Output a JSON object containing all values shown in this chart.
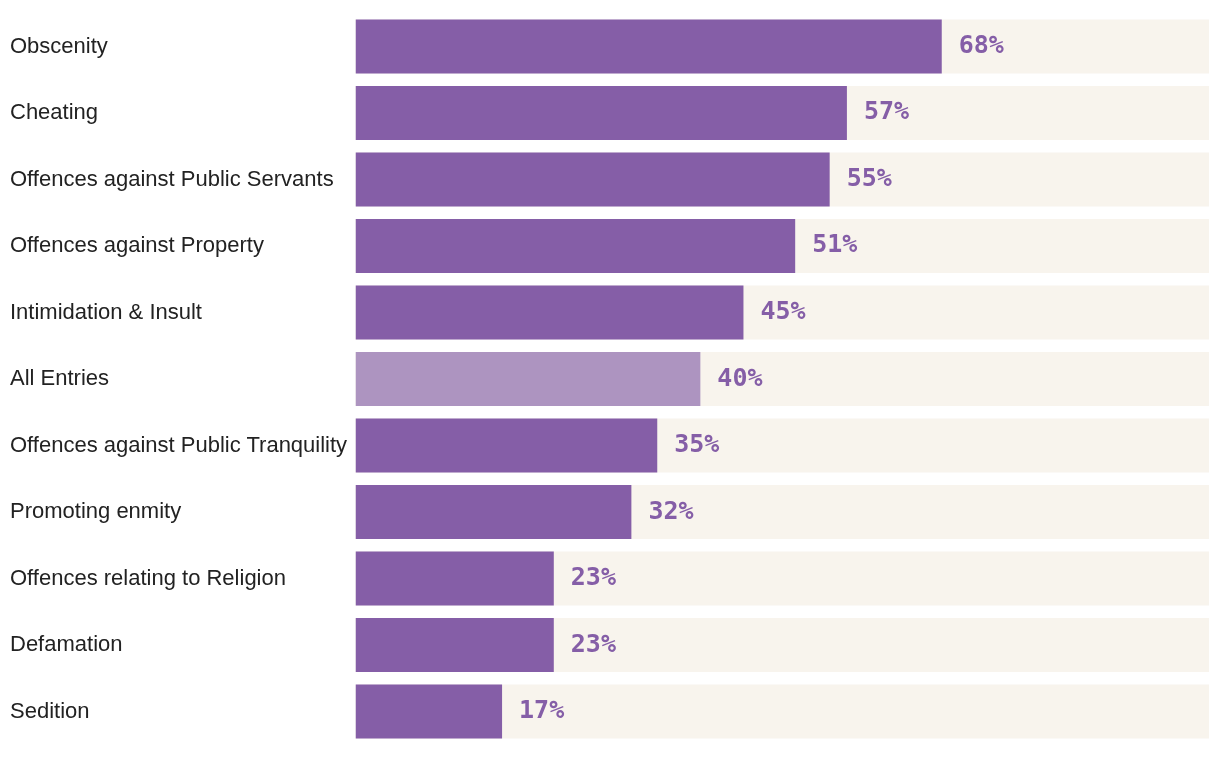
{
  "chart_data": {
    "type": "bar",
    "orientation": "horizontal",
    "categories": [
      "Obscenity",
      "Cheating",
      "Offences against Public Servants",
      "Offences against Property",
      "Intimidation & Insult",
      "All Entries",
      "Offences against Public Tranquility",
      "Promoting enmity",
      "Offences relating to Religion",
      "Defamation",
      "Sedition"
    ],
    "values": [
      68,
      57,
      55,
      51,
      45,
      40,
      35,
      32,
      23,
      23,
      17
    ],
    "colors": [
      "#855ea7",
      "#855ea7",
      "#855ea7",
      "#855ea7",
      "#855ea7",
      "#ad94c0",
      "#855ea7",
      "#855ea7",
      "#855ea7",
      "#855ea7",
      "#855ea7"
    ],
    "value_labels": [
      "68%",
      "57%",
      "55%",
      "51%",
      "45%",
      "40%",
      "35%",
      "32%",
      "23%",
      "23%",
      "17%"
    ],
    "xlim": [
      0,
      99
    ],
    "tick_labels": "y",
    "legend": false
  }
}
